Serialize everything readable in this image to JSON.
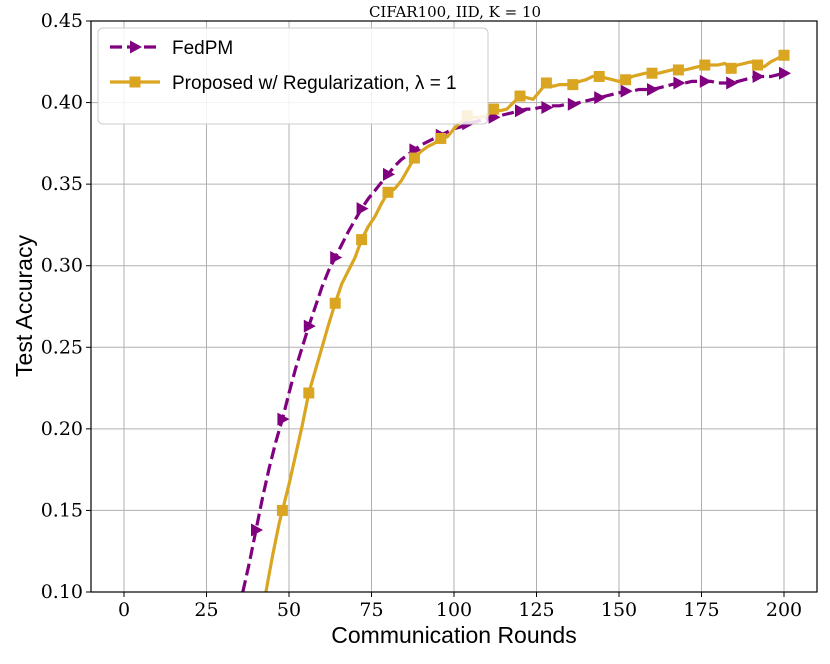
{
  "chart_data": {
    "type": "line",
    "title": "CIFAR100, IID, K = 10",
    "xlabel": "Communication Rounds",
    "ylabel": "Test Accuracy",
    "xlim": [
      -10,
      210
    ],
    "ylim": [
      0.1,
      0.45
    ],
    "xticks": [
      0,
      25,
      50,
      75,
      100,
      125,
      150,
      175,
      200
    ],
    "yticks": [
      0.1,
      0.15,
      0.2,
      0.25,
      0.3,
      0.35,
      0.4,
      0.45
    ],
    "grid": true,
    "legend_position": "top-left",
    "series": [
      {
        "name": "FedPM",
        "color": "#800080",
        "line_style": "dashed",
        "marker": "triangle-right",
        "marker_x": [
          40,
          48,
          56,
          64,
          72,
          80,
          88,
          96,
          104,
          112,
          120,
          128,
          136,
          144,
          152,
          160,
          168,
          176,
          184,
          192,
          200
        ],
        "x": [
          36,
          38,
          40,
          42,
          44,
          46,
          48,
          50,
          52,
          54,
          56,
          58,
          60,
          62,
          64,
          66,
          68,
          70,
          72,
          74,
          76,
          78,
          80,
          82,
          84,
          86,
          88,
          90,
          92,
          94,
          96,
          98,
          100,
          102,
          104,
          106,
          108,
          110,
          112,
          114,
          116,
          118,
          120,
          122,
          124,
          126,
          128,
          130,
          132,
          134,
          136,
          138,
          140,
          142,
          144,
          146,
          148,
          150,
          152,
          154,
          156,
          158,
          160,
          162,
          164,
          166,
          168,
          170,
          172,
          174,
          176,
          178,
          180,
          182,
          184,
          186,
          188,
          190,
          192,
          194,
          196,
          198,
          200
        ],
        "values": [
          0.1,
          0.118,
          0.138,
          0.158,
          0.176,
          0.192,
          0.206,
          0.222,
          0.237,
          0.25,
          0.263,
          0.275,
          0.287,
          0.297,
          0.305,
          0.313,
          0.321,
          0.328,
          0.335,
          0.341,
          0.346,
          0.351,
          0.356,
          0.361,
          0.365,
          0.368,
          0.371,
          0.374,
          0.376,
          0.378,
          0.38,
          0.382,
          0.384,
          0.385,
          0.387,
          0.388,
          0.389,
          0.39,
          0.391,
          0.392,
          0.393,
          0.394,
          0.395,
          0.396,
          0.396,
          0.397,
          0.397,
          0.398,
          0.398,
          0.399,
          0.399,
          0.4,
          0.401,
          0.402,
          0.403,
          0.404,
          0.405,
          0.406,
          0.407,
          0.407,
          0.408,
          0.408,
          0.408,
          0.409,
          0.41,
          0.411,
          0.412,
          0.412,
          0.413,
          0.413,
          0.413,
          0.413,
          0.412,
          0.412,
          0.412,
          0.413,
          0.414,
          0.415,
          0.416,
          0.416,
          0.416,
          0.417,
          0.418
        ]
      },
      {
        "name": "Proposed w/ Regularization, λ = 1",
        "color": "#DAA520",
        "line_style": "solid",
        "marker": "square",
        "marker_x": [
          48,
          56,
          64,
          72,
          80,
          88,
          96,
          104,
          112,
          120,
          128,
          136,
          144,
          152,
          160,
          168,
          176,
          184,
          192,
          200
        ],
        "x": [
          43,
          45,
          47,
          48,
          50,
          52,
          54,
          56,
          58,
          60,
          62,
          64,
          66,
          68,
          70,
          72,
          74,
          76,
          78,
          80,
          82,
          84,
          86,
          88,
          90,
          92,
          94,
          96,
          98,
          100,
          102,
          104,
          106,
          108,
          110,
          112,
          114,
          116,
          118,
          120,
          122,
          124,
          126,
          128,
          130,
          132,
          134,
          136,
          138,
          140,
          142,
          144,
          146,
          148,
          150,
          152,
          154,
          156,
          158,
          160,
          162,
          164,
          166,
          168,
          170,
          172,
          174,
          176,
          178,
          180,
          182,
          184,
          186,
          188,
          190,
          192,
          194,
          196,
          198,
          200
        ],
        "values": [
          0.1,
          0.122,
          0.142,
          0.15,
          0.166,
          0.184,
          0.202,
          0.222,
          0.236,
          0.25,
          0.264,
          0.277,
          0.289,
          0.297,
          0.305,
          0.316,
          0.324,
          0.33,
          0.338,
          0.345,
          0.347,
          0.352,
          0.359,
          0.366,
          0.37,
          0.373,
          0.375,
          0.378,
          0.379,
          0.384,
          0.388,
          0.392,
          0.391,
          0.391,
          0.392,
          0.396,
          0.395,
          0.396,
          0.4,
          0.404,
          0.403,
          0.402,
          0.407,
          0.412,
          0.41,
          0.411,
          0.411,
          0.411,
          0.413,
          0.414,
          0.416,
          0.416,
          0.415,
          0.414,
          0.413,
          0.414,
          0.416,
          0.417,
          0.418,
          0.418,
          0.418,
          0.419,
          0.42,
          0.42,
          0.42,
          0.421,
          0.422,
          0.423,
          0.423,
          0.423,
          0.424,
          0.421,
          0.423,
          0.424,
          0.425,
          0.423,
          0.422,
          0.425,
          0.427,
          0.429
        ]
      }
    ]
  }
}
